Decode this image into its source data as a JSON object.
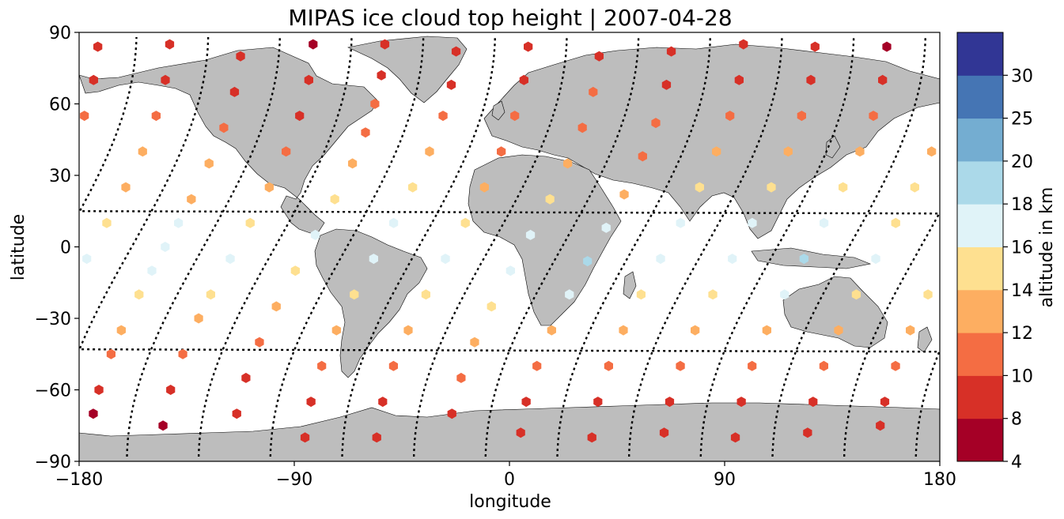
{
  "chart_data": {
    "type": "scatter",
    "title": "MIPAS ice cloud top height | 2007-04-28",
    "xlabel": "longitude",
    "ylabel": "latitude",
    "xlim": [
      -180,
      180
    ],
    "ylim": [
      -90,
      90
    ],
    "xticks": [
      -180,
      -90,
      0,
      90,
      180
    ],
    "yticks": [
      -90,
      -60,
      -30,
      0,
      30,
      60,
      90
    ],
    "xtick_labels": [
      "−180",
      "−90",
      "0",
      "90",
      "180"
    ],
    "ytick_labels": [
      "−90",
      "−60",
      "−30",
      "0",
      "30",
      "60",
      "90"
    ],
    "grid": false,
    "colorbar": {
      "label": "altitude in km",
      "bounds": [
        4,
        8,
        10,
        12,
        14,
        16,
        18,
        20,
        25,
        30
      ],
      "tick_labels": [
        "4",
        "8",
        "10",
        "12",
        "14",
        "16",
        "18",
        "20",
        "25",
        "30"
      ],
      "colors": [
        "#a50026",
        "#d73027",
        "#f46d43",
        "#fdae61",
        "#fee090",
        "#e0f3f8",
        "#abd9e9",
        "#74add1",
        "#4575b4",
        "#313695"
      ]
    },
    "colors": {
      "land": "#bdbdbd",
      "coast": "#000000",
      "track": "#000000"
    },
    "track_nodes": [
      -158,
      -128,
      -98,
      -68,
      -38,
      -8,
      22,
      52,
      82,
      112,
      142,
      172
    ],
    "track_values_description": "cloud top height in km along orbit tracks, sampled by latitude",
    "tracks": [
      {
        "node": -158,
        "points": [
          [
            80,
            8
          ],
          [
            65,
            9
          ],
          [
            50,
            10
          ],
          [
            35,
            12
          ],
          [
            20,
            13
          ],
          [
            10,
            16
          ],
          [
            0,
            17
          ],
          [
            -10,
            16
          ],
          [
            -20,
            15
          ],
          [
            -35,
            12
          ],
          [
            -45,
            11
          ],
          [
            -60,
            8
          ],
          [
            -70,
            7
          ]
        ]
      },
      {
        "node": -128,
        "points": [
          [
            85,
            7
          ],
          [
            70,
            8
          ],
          [
            55,
            9
          ],
          [
            40,
            11
          ],
          [
            25,
            13
          ],
          [
            10,
            15
          ],
          [
            -5,
            16
          ],
          [
            -20,
            14
          ],
          [
            -30,
            12
          ],
          [
            -45,
            10
          ],
          [
            -60,
            8
          ],
          [
            -75,
            7
          ]
        ]
      },
      {
        "node": -98,
        "points": [
          [
            85,
            8
          ],
          [
            72,
            9
          ],
          [
            60,
            10
          ],
          [
            48,
            11
          ],
          [
            35,
            12
          ],
          [
            20,
            14
          ],
          [
            5,
            16
          ],
          [
            -10,
            15
          ],
          [
            -25,
            12
          ],
          [
            -40,
            10
          ],
          [
            -55,
            9
          ],
          [
            -70,
            8
          ]
        ]
      },
      {
        "node": -68,
        "points": [
          [
            82,
            8
          ],
          [
            68,
            9
          ],
          [
            55,
            10
          ],
          [
            40,
            12
          ],
          [
            25,
            14
          ],
          [
            10,
            16
          ],
          [
            -5,
            17
          ],
          [
            -20,
            15
          ],
          [
            -35,
            13
          ],
          [
            -50,
            11
          ],
          [
            -65,
            9
          ],
          [
            -80,
            8
          ]
        ]
      },
      {
        "node": -38,
        "points": [
          [
            84,
            8
          ],
          [
            70,
            9
          ],
          [
            55,
            10
          ],
          [
            40,
            11
          ],
          [
            25,
            12
          ],
          [
            10,
            15
          ],
          [
            -5,
            17
          ],
          [
            -20,
            14
          ],
          [
            -35,
            12
          ],
          [
            -50,
            10
          ],
          [
            -65,
            9
          ],
          [
            -80,
            8
          ]
        ]
      },
      {
        "node": -8,
        "points": [
          [
            80,
            9
          ],
          [
            65,
            10
          ],
          [
            50,
            11
          ],
          [
            35,
            12
          ],
          [
            20,
            14
          ],
          [
            5,
            16
          ],
          [
            -10,
            17
          ],
          [
            -25,
            15
          ],
          [
            -40,
            12
          ],
          [
            -55,
            10
          ],
          [
            -70,
            8
          ]
        ]
      },
      {
        "node": 22,
        "points": [
          [
            82,
            8
          ],
          [
            68,
            9
          ],
          [
            52,
            10
          ],
          [
            38,
            11
          ],
          [
            22,
            12
          ],
          [
            8,
            16
          ],
          [
            -6,
            18
          ],
          [
            -20,
            16
          ],
          [
            -35,
            13
          ],
          [
            -50,
            11
          ],
          [
            -65,
            9
          ],
          [
            -78,
            8
          ]
        ]
      },
      {
        "node": 52,
        "points": [
          [
            85,
            8
          ],
          [
            70,
            9
          ],
          [
            55,
            10
          ],
          [
            40,
            12
          ],
          [
            25,
            14
          ],
          [
            10,
            16
          ],
          [
            -5,
            17
          ],
          [
            -20,
            14
          ],
          [
            -35,
            12
          ],
          [
            -50,
            10
          ],
          [
            -65,
            9
          ],
          [
            -80,
            8
          ]
        ]
      },
      {
        "node": 82,
        "points": [
          [
            84,
            8
          ],
          [
            70,
            9
          ],
          [
            55,
            10
          ],
          [
            40,
            12
          ],
          [
            25,
            14
          ],
          [
            10,
            16
          ],
          [
            -5,
            17
          ],
          [
            -20,
            15
          ],
          [
            -35,
            12
          ],
          [
            -50,
            10
          ],
          [
            -65,
            9
          ],
          [
            -78,
            8
          ]
        ]
      },
      {
        "node": 112,
        "points": [
          [
            84,
            7
          ],
          [
            70,
            8
          ],
          [
            55,
            10
          ],
          [
            40,
            12
          ],
          [
            25,
            14
          ],
          [
            10,
            16
          ],
          [
            -5,
            18
          ],
          [
            -20,
            16
          ],
          [
            -35,
            13
          ],
          [
            -50,
            11
          ],
          [
            -65,
            9
          ],
          [
            -80,
            8
          ]
        ]
      },
      {
        "node": 142,
        "points": [
          [
            84,
            8
          ],
          [
            70,
            9
          ],
          [
            55,
            10
          ],
          [
            40,
            12
          ],
          [
            25,
            14
          ],
          [
            10,
            15
          ],
          [
            -5,
            16
          ],
          [
            -20,
            14
          ],
          [
            -35,
            12
          ],
          [
            -50,
            10
          ],
          [
            -65,
            9
          ],
          [
            -78,
            8
          ]
        ]
      },
      {
        "node": 172,
        "points": [
          [
            85,
            8
          ],
          [
            70,
            9
          ],
          [
            55,
            10
          ],
          [
            40,
            12
          ],
          [
            25,
            13
          ],
          [
            10,
            15
          ],
          [
            -5,
            16
          ],
          [
            -20,
            14
          ],
          [
            -35,
            12
          ],
          [
            -50,
            10
          ],
          [
            -65,
            9
          ],
          [
            -75,
            8
          ]
        ]
      }
    ]
  }
}
